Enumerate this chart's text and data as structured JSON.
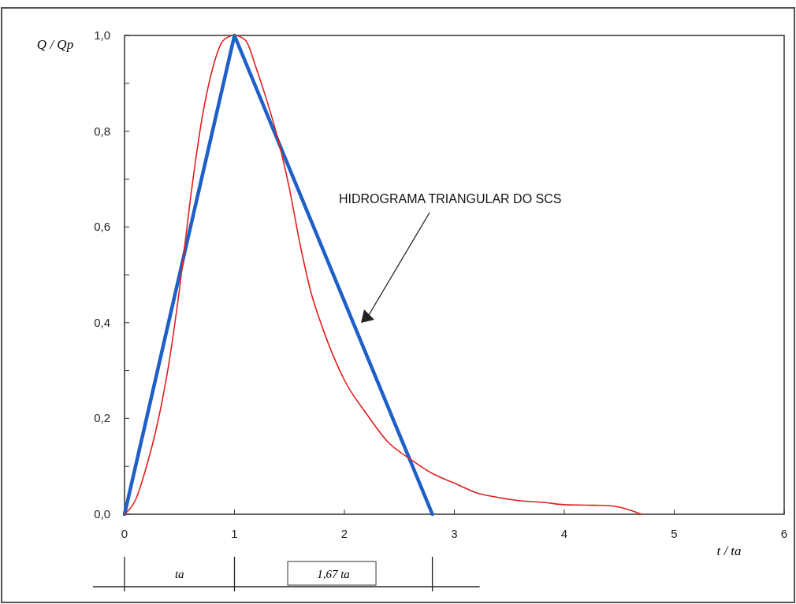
{
  "chart_data": {
    "type": "line",
    "xlabel": "t / ta",
    "ylabel": "Q / Qp",
    "xlim": [
      0,
      6
    ],
    "xticks": [
      0,
      1,
      2,
      3,
      4,
      5,
      6
    ],
    "ylim": [
      0,
      1
    ],
    "yticks": [
      {
        "value": 0,
        "label": "0,0"
      },
      {
        "value": 0.1,
        "label": null
      },
      {
        "value": 0.2,
        "label": "0,2"
      },
      {
        "value": 0.3,
        "label": null
      },
      {
        "value": 0.4,
        "label": "0,4"
      },
      {
        "value": 0.5,
        "label": null
      },
      {
        "value": 0.6,
        "label": "0,6"
      },
      {
        "value": 0.7,
        "label": null
      },
      {
        "value": 0.8,
        "label": "0,8"
      },
      {
        "value": 0.9,
        "label": null
      },
      {
        "value": 1,
        "label": "1,0"
      }
    ],
    "grid": false,
    "marker": "none",
    "line_style": "solid",
    "series": [
      {
        "color": "#1f5fc8",
        "x": [
          0,
          1,
          2.8
        ],
        "values": [
          0,
          1,
          0
        ]
      },
      {
        "color": "#e02020",
        "x": [
          0,
          0.1,
          0.2,
          0.3,
          0.4,
          0.5,
          0.6,
          0.7,
          0.8,
          0.9,
          1.0,
          1.1,
          1.2,
          1.3,
          1.4,
          1.5,
          1.6,
          1.7,
          1.8,
          1.9,
          2.0,
          2.2,
          2.4,
          2.6,
          2.8,
          3.0,
          3.2,
          3.4,
          3.6,
          3.8,
          4.0,
          4.2,
          4.4,
          4.7
        ],
        "values": [
          0,
          0.03,
          0.1,
          0.19,
          0.31,
          0.47,
          0.66,
          0.82,
          0.93,
          0.99,
          1.0,
          0.99,
          0.93,
          0.86,
          0.78,
          0.68,
          0.56,
          0.46,
          0.39,
          0.33,
          0.28,
          0.21,
          0.15,
          0.115,
          0.085,
          0.065,
          0.045,
          0.035,
          0.028,
          0.025,
          0.02,
          0.019,
          0.018,
          0
        ]
      }
    ],
    "annotations": [
      "HIDROGRAMA TRIANGULAR DO SCS",
      "ta",
      "1,67 ta"
    ]
  }
}
